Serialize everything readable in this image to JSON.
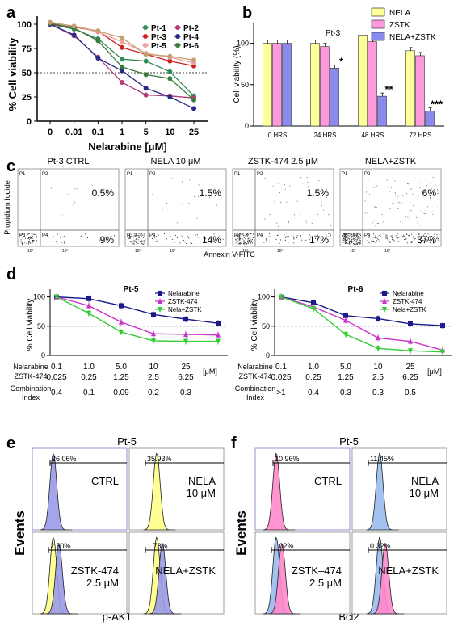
{
  "panel_labels": [
    "a",
    "b",
    "c",
    "d",
    "e",
    "f"
  ],
  "chart_data": [
    {
      "id": "a",
      "type": "line",
      "ylabel": "% Cell viability",
      "xlabel": "Nelarabine [μM]",
      "categories": [
        "0",
        "0.01",
        "0.1",
        "1",
        "5",
        "10",
        "25"
      ],
      "yticks": [
        "0",
        "25",
        "50",
        "75",
        "100"
      ],
      "ylim": [
        0,
        105
      ],
      "reference_line": 50,
      "legend": "top-right",
      "series": [
        {
          "name": "Pt-1",
          "color": "#2e8b57",
          "values": [
            100,
            95,
            85,
            64,
            62,
            51,
            26
          ]
        },
        {
          "name": "Pt-2",
          "color": "#b03a7a",
          "values": [
            100,
            88,
            66,
            40,
            27,
            26,
            24
          ]
        },
        {
          "name": "Pt-3",
          "color": "#cc2222",
          "values": [
            100,
            97,
            93,
            76,
            69,
            62,
            57
          ]
        },
        {
          "name": "Pt-4",
          "color": "#2a2a88",
          "values": [
            100,
            89,
            65,
            52,
            34,
            25,
            13
          ]
        },
        {
          "name": "Pt-5",
          "color": "#f0a0a0",
          "values": [
            101,
            98,
            92,
            82,
            70,
            66,
            60
          ]
        },
        {
          "name": "Pt-6",
          "color": "#3a7a3a",
          "values": [
            101,
            96,
            83,
            56,
            48,
            44,
            22
          ]
        },
        {
          "name": "",
          "color": "#c4a070",
          "values": [
            102,
            98,
            93,
            86,
            69,
            67,
            63
          ]
        }
      ]
    },
    {
      "id": "b",
      "type": "bar",
      "title": "Pt-3",
      "ylabel": "Cell viability (%)",
      "categories": [
        "0 HRS",
        "24 HRS",
        "48 HRS",
        "72 HRS"
      ],
      "yticks": [
        "0",
        "50",
        "100"
      ],
      "ylim": [
        0,
        125
      ],
      "legend": "top-right",
      "series": [
        {
          "name": "NELA",
          "color": "#ffff99",
          "values": [
            100,
            100,
            110,
            91
          ]
        },
        {
          "name": "ZSTK",
          "color": "#ff99dd",
          "values": [
            100,
            96,
            102,
            85
          ]
        },
        {
          "name": "NELA+ZSTK",
          "color": "#8a8aee",
          "values": [
            100,
            70,
            36,
            18
          ]
        }
      ],
      "significance": [
        "",
        "*",
        "**",
        "***"
      ]
    },
    {
      "id": "d1",
      "type": "line",
      "title": "Pt-5",
      "ylabel": "% Cell viability",
      "yticks": [
        "0",
        "50",
        "100"
      ],
      "ylim": [
        0,
        105
      ],
      "reference_line": 50,
      "legend": "top-right",
      "series": [
        {
          "name": "Nelarabine",
          "color": "#1a1a8a",
          "values": [
            100,
            97,
            85,
            70,
            62,
            55
          ]
        },
        {
          "name": "ZSTK-474",
          "color": "#cc33cc",
          "values": [
            100,
            85,
            57,
            37,
            36,
            35
          ]
        },
        {
          "name": "Nela+ZSTK",
          "color": "#33cc33",
          "values": [
            100,
            72,
            40,
            25,
            24,
            24
          ]
        }
      ]
    },
    {
      "id": "d2",
      "type": "line",
      "title": "Pt-6",
      "ylabel": "% Cell viability",
      "yticks": [
        "0",
        "50",
        "100"
      ],
      "ylim": [
        0,
        105
      ],
      "reference_line": 50,
      "legend": "top-right",
      "series": [
        {
          "name": "Nelarabine",
          "color": "#1a1a8a",
          "values": [
            100,
            90,
            68,
            63,
            54,
            51
          ]
        },
        {
          "name": "ZSTK-474",
          "color": "#cc33cc",
          "values": [
            100,
            83,
            60,
            30,
            24,
            9
          ]
        },
        {
          "name": "Nela+ZSTK",
          "color": "#33cc33",
          "values": [
            100,
            80,
            36,
            12,
            8,
            6
          ]
        }
      ]
    }
  ],
  "panel_a": {
    "ylabel": "% Cell viability",
    "xlabel": "Nelarabine [μM]"
  },
  "panel_b": {
    "title": "Pt-3",
    "ylabel": "Cell viability (%)"
  },
  "panel_c": {
    "ylabel": "Propidium Iodide",
    "xlabel": "Annexin V-FITC",
    "quadrant_labels": [
      "P1",
      "P2",
      "P3",
      "P4"
    ],
    "axis_tick": "10⁰",
    "plots": [
      {
        "title": "Pt-3 CTRL",
        "upper": "0.5%",
        "lower": "9%"
      },
      {
        "title": "NELA 10 μM",
        "upper": "1.5%",
        "lower": "14%"
      },
      {
        "title": "ZSTK-474 2.5 μM",
        "upper": "1.5%",
        "lower": "17%"
      },
      {
        "title": "NELA+ZSTK",
        "upper": "6%",
        "lower": "37%"
      }
    ]
  },
  "panel_d_tables": {
    "row_labels": [
      "Nelarabine",
      "ZSTK-474",
      "Combination",
      "Index"
    ],
    "unit": "[μM]",
    "left": {
      "nela": [
        "0.1",
        "1.0",
        "5.0",
        "10",
        "25"
      ],
      "zstk": [
        "0.025",
        "0.25",
        "1.25",
        "2.5",
        "6.25"
      ],
      "ci": [
        "0.4",
        "0.1",
        "0.09",
        "0.2",
        "0.3"
      ]
    },
    "right": {
      "nela": [
        "0.1",
        "1.0",
        "5.0",
        "10",
        "25"
      ],
      "zstk": [
        "0.025",
        "0.25",
        "1.25",
        "2.5",
        "6.25"
      ],
      "ci": [
        ">1",
        "0.4",
        "0.3",
        "0.3",
        "0.5"
      ]
    }
  },
  "panel_e": {
    "title": "Pt-5",
    "ylabel": "Events",
    "xlabel": "p-AKT",
    "plots": [
      {
        "label": "CTRL",
        "pct": "26.06%"
      },
      {
        "label": "NELA\n10 μM",
        "pct": "35.93%"
      },
      {
        "label": "ZSTK-474\n2.5 μM",
        "pct": "2.50%"
      },
      {
        "label": "NELA+ZSTK",
        "pct": "1.78%"
      }
    ]
  },
  "panel_f": {
    "title": "Pt-5",
    "ylabel": "Events",
    "xlabel": "Bcl2",
    "plots": [
      {
        "label": "CTRL",
        "pct": "10.96%"
      },
      {
        "label": "NELA\n10 μM",
        "pct": "11.45%"
      },
      {
        "label": "ZSTK–474\n2.5 μM",
        "pct": "1.02%"
      },
      {
        "label": "NELA+ZSTK",
        "pct": "0.32%"
      }
    ]
  }
}
